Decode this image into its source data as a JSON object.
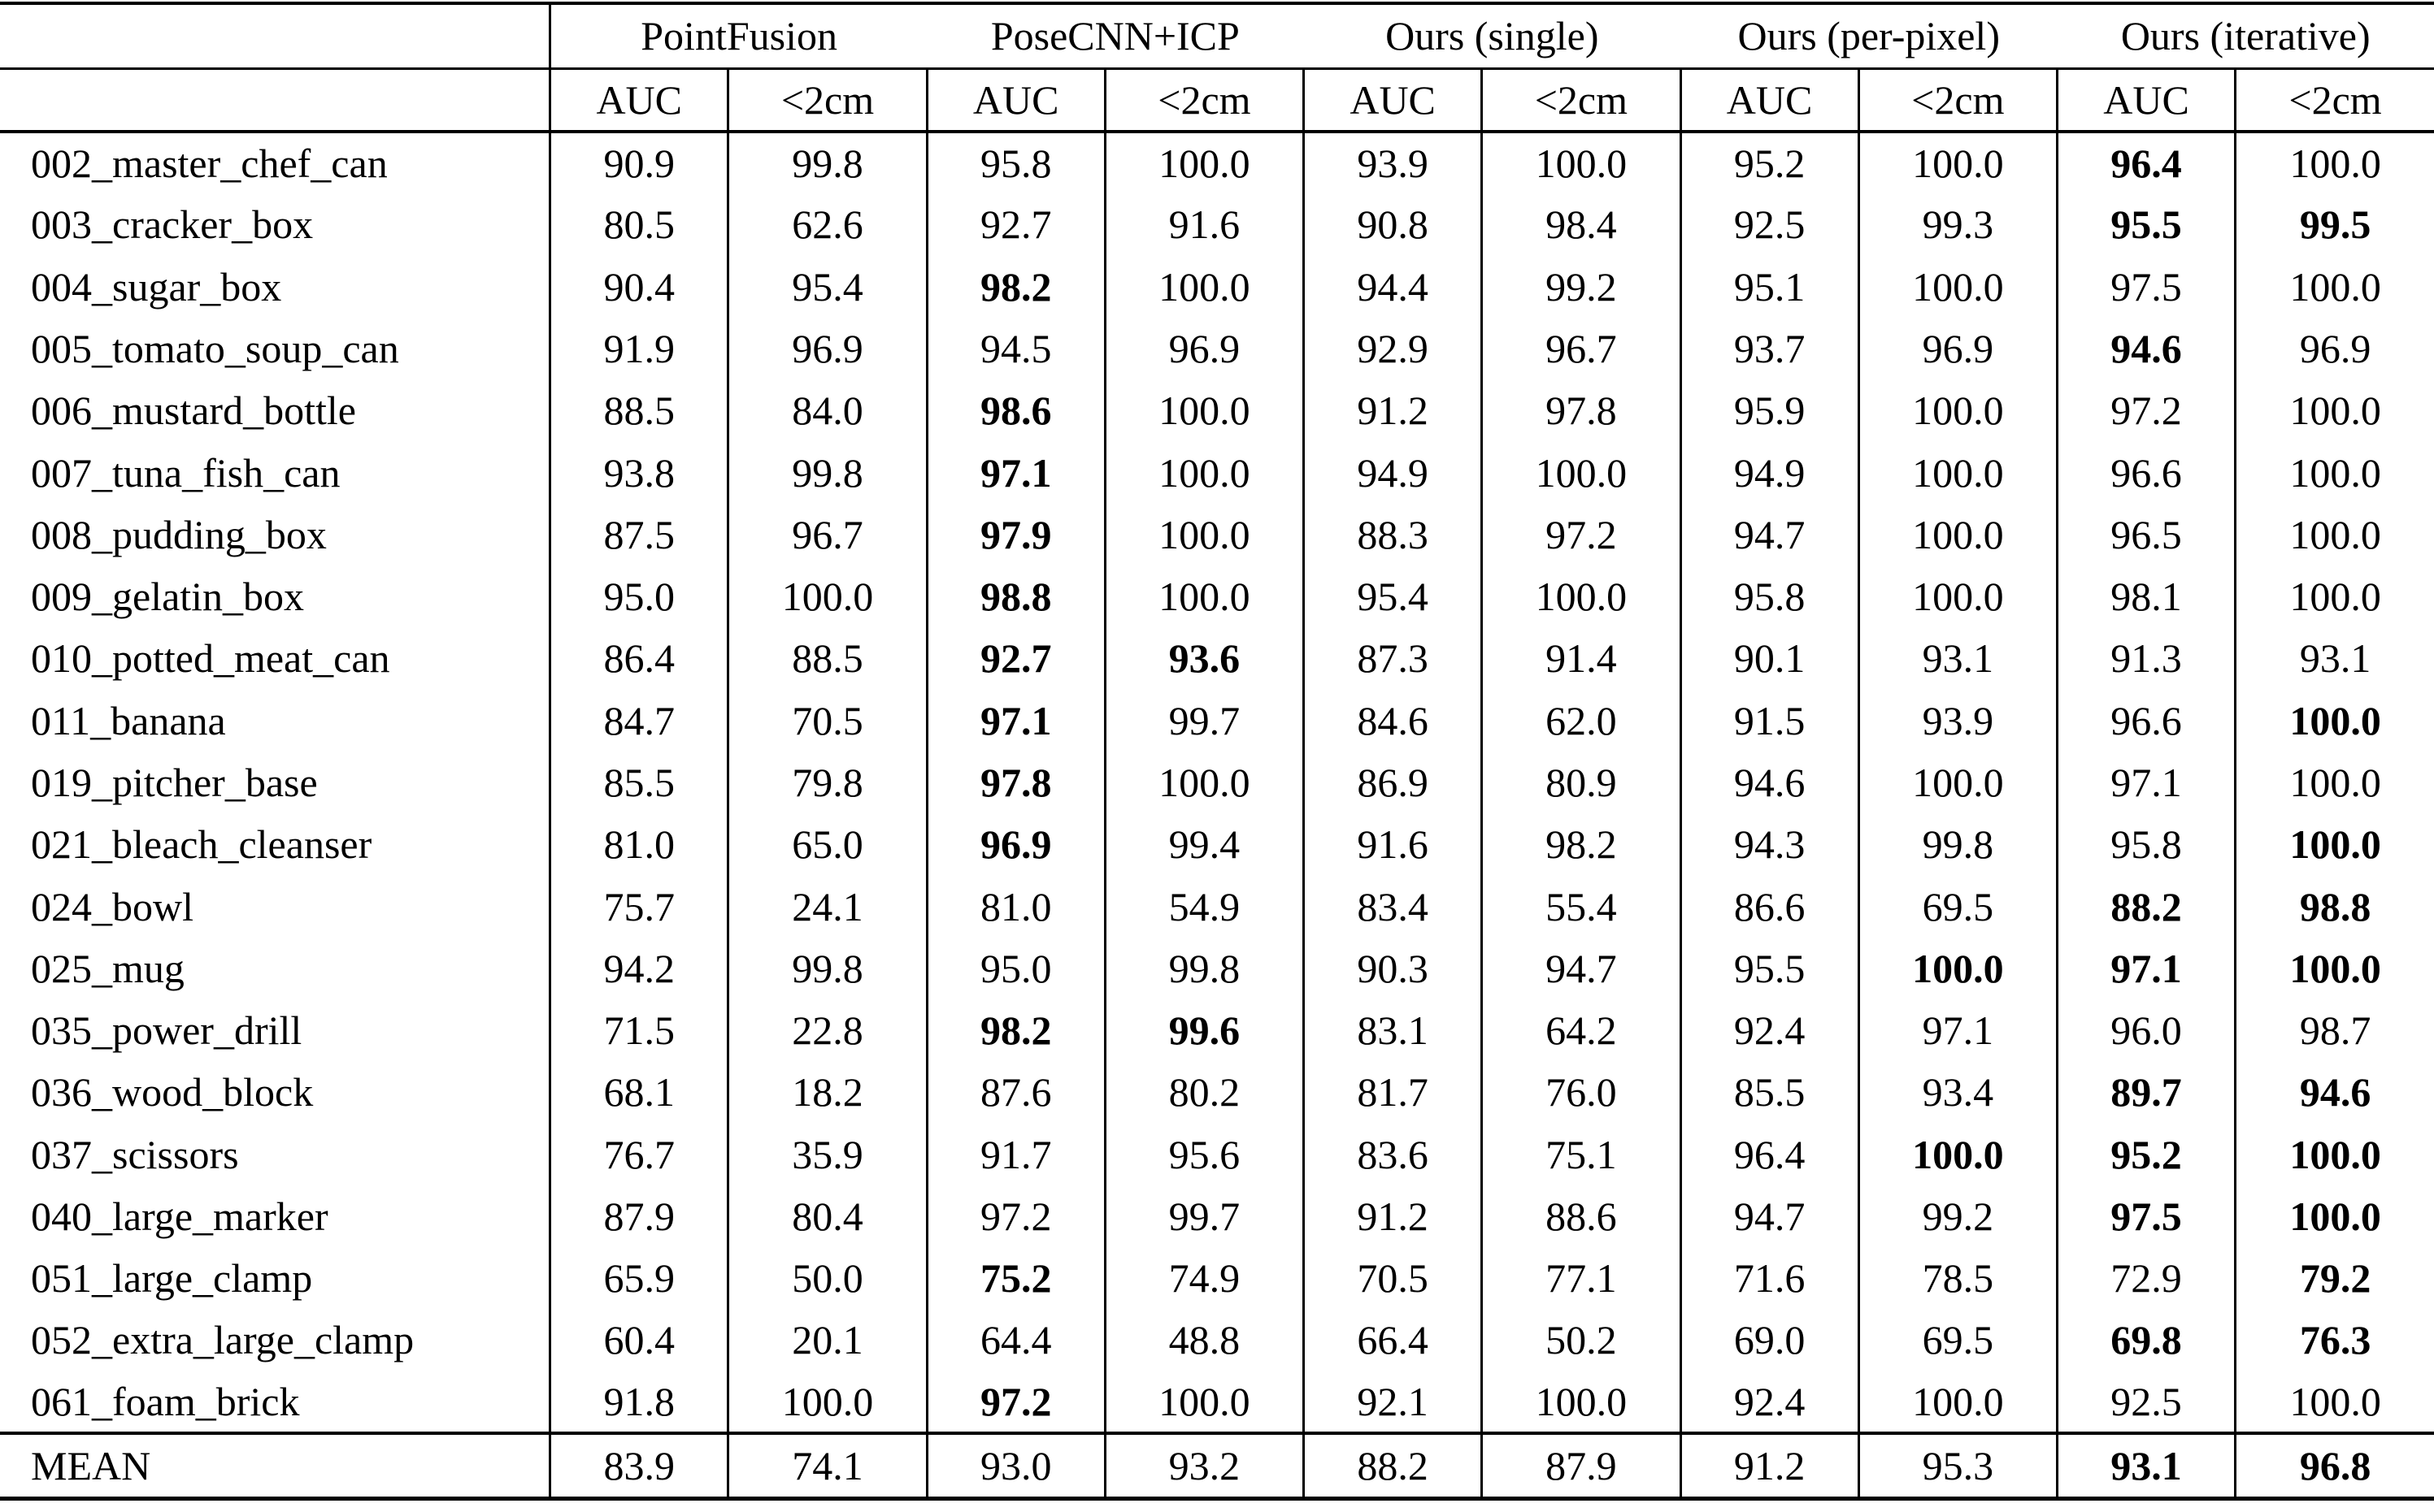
{
  "page": {
    "background": "#ffffff",
    "text_color": "#000000"
  },
  "table": {
    "corner_label": "",
    "method_groups": [
      {
        "label": "PointFusion"
      },
      {
        "label": "PoseCNN+ICP"
      },
      {
        "label": "Ours (single)"
      },
      {
        "label": "Ours (per-pixel)"
      },
      {
        "label": "Ours (iterative)"
      }
    ],
    "metric_headers": [
      "AUC",
      "<2cm"
    ],
    "rows": [
      {
        "name": "002_master_chef_can",
        "values": [
          "90.9",
          "99.8",
          "95.8",
          "100.0",
          "93.9",
          "100.0",
          "95.2",
          "100.0",
          "96.4",
          "100.0"
        ],
        "bold": [
          8
        ]
      },
      {
        "name": "003_cracker_box",
        "values": [
          "80.5",
          "62.6",
          "92.7",
          "91.6",
          "90.8",
          "98.4",
          "92.5",
          "99.3",
          "95.5",
          "99.5"
        ],
        "bold": [
          8,
          9
        ]
      },
      {
        "name": "004_sugar_box",
        "values": [
          "90.4",
          "95.4",
          "98.2",
          "100.0",
          "94.4",
          "99.2",
          "95.1",
          "100.0",
          "97.5",
          "100.0"
        ],
        "bold": [
          2
        ]
      },
      {
        "name": "005_tomato_soup_can",
        "values": [
          "91.9",
          "96.9",
          "94.5",
          "96.9",
          "92.9",
          "96.7",
          "93.7",
          "96.9",
          "94.6",
          "96.9"
        ],
        "bold": [
          8
        ]
      },
      {
        "name": "006_mustard_bottle",
        "values": [
          "88.5",
          "84.0",
          "98.6",
          "100.0",
          "91.2",
          "97.8",
          "95.9",
          "100.0",
          "97.2",
          "100.0"
        ],
        "bold": [
          2
        ]
      },
      {
        "name": "007_tuna_fish_can",
        "values": [
          "93.8",
          "99.8",
          "97.1",
          "100.0",
          "94.9",
          "100.0",
          "94.9",
          "100.0",
          "96.6",
          "100.0"
        ],
        "bold": [
          2
        ]
      },
      {
        "name": "008_pudding_box",
        "values": [
          "87.5",
          "96.7",
          "97.9",
          "100.0",
          "88.3",
          "97.2",
          "94.7",
          "100.0",
          "96.5",
          "100.0"
        ],
        "bold": [
          2
        ]
      },
      {
        "name": "009_gelatin_box",
        "values": [
          "95.0",
          "100.0",
          "98.8",
          "100.0",
          "95.4",
          "100.0",
          "95.8",
          "100.0",
          "98.1",
          "100.0"
        ],
        "bold": [
          2
        ]
      },
      {
        "name": "010_potted_meat_can",
        "values": [
          "86.4",
          "88.5",
          "92.7",
          "93.6",
          "87.3",
          "91.4",
          "90.1",
          "93.1",
          "91.3",
          "93.1"
        ],
        "bold": [
          2,
          3
        ]
      },
      {
        "name": "011_banana",
        "values": [
          "84.7",
          "70.5",
          "97.1",
          "99.7",
          "84.6",
          "62.0",
          "91.5",
          "93.9",
          "96.6",
          "100.0"
        ],
        "bold": [
          2,
          9
        ]
      },
      {
        "name": "019_pitcher_base",
        "values": [
          "85.5",
          "79.8",
          "97.8",
          "100.0",
          "86.9",
          "80.9",
          "94.6",
          "100.0",
          "97.1",
          "100.0"
        ],
        "bold": [
          2
        ]
      },
      {
        "name": "021_bleach_cleanser",
        "values": [
          "81.0",
          "65.0",
          "96.9",
          "99.4",
          "91.6",
          "98.2",
          "94.3",
          "99.8",
          "95.8",
          "100.0"
        ],
        "bold": [
          2,
          9
        ]
      },
      {
        "name": "024_bowl",
        "values": [
          "75.7",
          "24.1",
          "81.0",
          "54.9",
          "83.4",
          "55.4",
          "86.6",
          "69.5",
          "88.2",
          "98.8"
        ],
        "bold": [
          8,
          9
        ]
      },
      {
        "name": "025_mug",
        "values": [
          "94.2",
          "99.8",
          "95.0",
          "99.8",
          "90.3",
          "94.7",
          "95.5",
          "100.0",
          "97.1",
          "100.0"
        ],
        "bold": [
          7,
          8,
          9
        ]
      },
      {
        "name": "035_power_drill",
        "values": [
          "71.5",
          "22.8",
          "98.2",
          "99.6",
          "83.1",
          "64.2",
          "92.4",
          "97.1",
          "96.0",
          "98.7"
        ],
        "bold": [
          2,
          3
        ]
      },
      {
        "name": "036_wood_block",
        "values": [
          "68.1",
          "18.2",
          "87.6",
          "80.2",
          "81.7",
          "76.0",
          "85.5",
          "93.4",
          "89.7",
          "94.6"
        ],
        "bold": [
          8,
          9
        ]
      },
      {
        "name": "037_scissors",
        "values": [
          "76.7",
          "35.9",
          "91.7",
          "95.6",
          "83.6",
          "75.1",
          "96.4",
          "100.0",
          "95.2",
          "100.0"
        ],
        "bold": [
          7,
          8,
          9
        ]
      },
      {
        "name": "040_large_marker",
        "values": [
          "87.9",
          "80.4",
          "97.2",
          "99.7",
          "91.2",
          "88.6",
          "94.7",
          "99.2",
          "97.5",
          "100.0"
        ],
        "bold": [
          8,
          9
        ]
      },
      {
        "name": "051_large_clamp",
        "values": [
          "65.9",
          "50.0",
          "75.2",
          "74.9",
          "70.5",
          "77.1",
          "71.6",
          "78.5",
          "72.9",
          "79.2"
        ],
        "bold": [
          2,
          9
        ]
      },
      {
        "name": "052_extra_large_clamp",
        "values": [
          "60.4",
          "20.1",
          "64.4",
          "48.8",
          "66.4",
          "50.2",
          "69.0",
          "69.5",
          "69.8",
          "76.3"
        ],
        "bold": [
          8,
          9
        ]
      },
      {
        "name": "061_foam_brick",
        "values": [
          "91.8",
          "100.0",
          "97.2",
          "100.0",
          "92.1",
          "100.0",
          "92.4",
          "100.0",
          "92.5",
          "100.0"
        ],
        "bold": [
          2
        ]
      },
      {
        "name": "MEAN",
        "values": [
          "83.9",
          "74.1",
          "93.0",
          "93.2",
          "88.2",
          "87.9",
          "91.2",
          "95.3",
          "93.1",
          "96.8"
        ],
        "bold": [
          8,
          9
        ],
        "is_mean": true
      }
    ]
  }
}
